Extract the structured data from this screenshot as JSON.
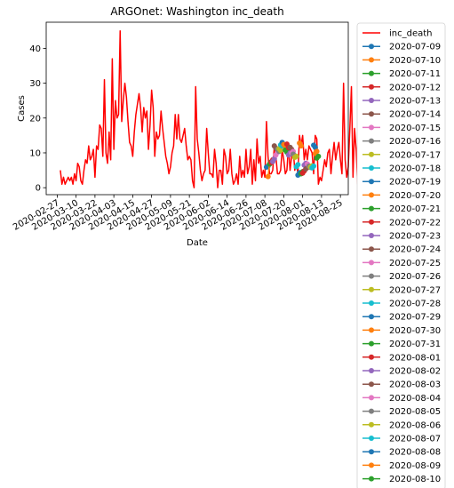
{
  "chart_data": {
    "type": "line",
    "title": "ARGOnet: Washington inc_death",
    "xlabel": "Date",
    "ylabel": "Cases",
    "xlim": [
      "2020-02-20",
      "2020-08-30"
    ],
    "ylim": [
      -2,
      47.5
    ],
    "grid": false,
    "legend_position": "outside-right",
    "x_ticks": [
      "2020-02-27",
      "2020-03-10",
      "2020-03-22",
      "2020-04-03",
      "2020-04-15",
      "2020-04-27",
      "2020-05-09",
      "2020-05-21",
      "2020-06-02",
      "2020-06-14",
      "2020-06-26",
      "2020-07-08",
      "2020-07-20",
      "2020-08-01",
      "2020-08-13",
      "2020-08-25"
    ],
    "y_ticks": [
      0,
      10,
      20,
      30,
      40
    ],
    "observed": {
      "name": "inc_death",
      "color": "#ff0000",
      "start_date": "2020-02-29",
      "values": [
        5,
        1,
        3,
        1,
        2,
        3,
        2,
        3,
        1,
        4,
        2,
        7,
        6,
        2,
        1,
        5,
        8,
        7,
        12,
        8,
        9,
        11,
        3,
        12,
        11,
        18,
        17,
        9,
        31,
        10,
        7,
        16,
        8,
        37,
        11,
        25,
        20,
        21,
        45,
        19,
        25,
        30,
        26,
        19,
        13,
        12,
        9,
        16,
        21,
        24,
        27,
        23,
        16,
        23,
        20,
        22,
        11,
        18,
        28,
        23,
        9,
        16,
        14,
        15,
        22,
        17,
        13,
        9,
        7,
        4,
        6,
        10,
        12,
        21,
        14,
        21,
        14,
        13,
        15,
        17,
        12,
        8,
        9,
        8,
        2,
        0,
        29,
        14,
        10,
        5,
        2,
        4,
        5,
        17,
        10,
        4,
        4,
        3,
        11,
        7,
        0,
        5,
        5,
        1,
        11,
        9,
        4,
        5,
        11,
        4,
        1,
        2,
        4,
        1,
        9,
        3,
        5,
        3,
        11,
        4,
        6,
        11,
        1,
        8,
        2,
        14,
        7,
        9,
        3,
        5,
        3,
        19,
        9,
        4,
        4,
        5,
        12,
        9,
        4,
        4,
        5,
        11,
        8,
        4,
        5,
        12,
        5,
        9,
        11,
        5,
        7,
        4,
        15,
        12,
        15,
        8,
        11,
        8,
        12,
        11,
        10,
        4,
        15,
        14,
        1,
        3,
        2,
        5,
        8,
        6,
        10,
        11,
        4,
        9,
        13,
        8,
        11,
        13,
        8,
        4,
        30,
        8,
        3,
        6,
        17,
        29,
        3,
        17,
        11,
        1,
        9,
        8,
        19,
        7,
        12,
        6,
        10,
        4,
        20,
        11,
        19,
        19,
        8,
        19,
        11,
        15,
        4
      ]
    },
    "forecasts": [
      {
        "name": "2020-07-09",
        "color": "#1f77b4",
        "x": [
          "2020-07-09",
          "2020-07-10"
        ],
        "y": [
          5.9,
          6.2
        ]
      },
      {
        "name": "2020-07-10",
        "color": "#ff7f0e",
        "x": [
          "2020-07-10",
          "2020-07-11"
        ],
        "y": [
          3.2,
          6.8
        ]
      },
      {
        "name": "2020-07-11",
        "color": "#2ca02c",
        "x": [
          "2020-07-11",
          "2020-07-12"
        ],
        "y": [
          6.8,
          7.4
        ]
      },
      {
        "name": "2020-07-12",
        "color": "#d62728",
        "x": [
          "2020-07-12",
          "2020-07-13"
        ],
        "y": [
          7.2,
          8.0
        ]
      },
      {
        "name": "2020-07-13",
        "color": "#9467bd",
        "x": [
          "2020-07-13",
          "2020-07-14"
        ],
        "y": [
          7.5,
          8.3
        ]
      },
      {
        "name": "2020-07-14",
        "color": "#8c564b",
        "x": [
          "2020-07-14",
          "2020-07-15"
        ],
        "y": [
          12.0,
          11.3
        ]
      },
      {
        "name": "2020-07-15",
        "color": "#e377c2",
        "x": [
          "2020-07-15",
          "2020-07-16"
        ],
        "y": [
          9.4,
          10.2
        ]
      },
      {
        "name": "2020-07-16",
        "color": "#7f7f7f",
        "x": [
          "2020-07-16",
          "2020-07-17"
        ],
        "y": [
          11.0,
          10.4
        ]
      },
      {
        "name": "2020-07-17",
        "color": "#bcbd22",
        "x": [
          "2020-07-17",
          "2020-07-18"
        ],
        "y": [
          11.2,
          10.7
        ]
      },
      {
        "name": "2020-07-18",
        "color": "#17becf",
        "x": [
          "2020-07-18",
          "2020-07-19"
        ],
        "y": [
          12.3,
          12.0
        ]
      },
      {
        "name": "2020-07-19",
        "color": "#1f77b4",
        "x": [
          "2020-07-19",
          "2020-07-20"
        ],
        "y": [
          13.0,
          12.4
        ]
      },
      {
        "name": "2020-07-20",
        "color": "#ff7f0e",
        "x": [
          "2020-07-20",
          "2020-07-21"
        ],
        "y": [
          12.4,
          11.8
        ]
      },
      {
        "name": "2020-07-21",
        "color": "#2ca02c",
        "x": [
          "2020-07-21",
          "2020-07-22"
        ],
        "y": [
          10.8,
          10.2
        ]
      },
      {
        "name": "2020-07-22",
        "color": "#d62728",
        "x": [
          "2020-07-22",
          "2020-07-23"
        ],
        "y": [
          12.5,
          11.5
        ]
      },
      {
        "name": "2020-07-23",
        "color": "#9467bd",
        "x": [
          "2020-07-23",
          "2020-07-24"
        ],
        "y": [
          9.4,
          10.0
        ]
      },
      {
        "name": "2020-07-24",
        "color": "#8c564b",
        "x": [
          "2020-07-24",
          "2020-07-25"
        ],
        "y": [
          11.6,
          11.0
        ]
      },
      {
        "name": "2020-07-25",
        "color": "#e377c2",
        "x": [
          "2020-07-25",
          "2020-07-26"
        ],
        "y": [
          10.0,
          10.4
        ]
      },
      {
        "name": "2020-07-26",
        "color": "#7f7f7f",
        "x": [
          "2020-07-26",
          "2020-07-27"
        ],
        "y": [
          9.6,
          9.2
        ]
      },
      {
        "name": "2020-07-27",
        "color": "#bcbd22",
        "x": [
          "2020-07-27",
          "2020-07-28"
        ],
        "y": [
          8.7,
          9.0
        ]
      },
      {
        "name": "2020-07-28",
        "color": "#17becf",
        "x": [
          "2020-07-28",
          "2020-07-29"
        ],
        "y": [
          6.0,
          6.6
        ]
      },
      {
        "name": "2020-07-29",
        "color": "#1f77b4",
        "x": [
          "2020-07-29",
          "2020-07-30"
        ],
        "y": [
          3.6,
          4.3
        ]
      },
      {
        "name": "2020-07-30",
        "color": "#ff7f0e",
        "x": [
          "2020-07-30",
          "2020-07-31"
        ],
        "y": [
          12.8,
          12.0
        ]
      },
      {
        "name": "2020-07-31",
        "color": "#2ca02c",
        "x": [
          "2020-07-31",
          "2020-08-01"
        ],
        "y": [
          4.0,
          4.6
        ]
      },
      {
        "name": "2020-08-01",
        "color": "#d62728",
        "x": [
          "2020-08-01",
          "2020-08-02"
        ],
        "y": [
          4.2,
          4.8
        ]
      },
      {
        "name": "2020-08-02",
        "color": "#9467bd",
        "x": [
          "2020-08-02",
          "2020-08-03"
        ],
        "y": [
          6.5,
          7.0
        ]
      },
      {
        "name": "2020-08-03",
        "color": "#8c564b",
        "x": [
          "2020-08-03",
          "2020-08-04"
        ],
        "y": [
          5.4,
          5.8
        ]
      },
      {
        "name": "2020-08-04",
        "color": "#e377c2",
        "x": [
          "2020-08-04",
          "2020-08-05"
        ],
        "y": [
          6.8,
          6.2
        ]
      },
      {
        "name": "2020-08-05",
        "color": "#7f7f7f",
        "x": [
          "2020-08-05",
          "2020-08-06"
        ],
        "y": [
          6.2,
          5.8
        ]
      },
      {
        "name": "2020-08-06",
        "color": "#bcbd22",
        "x": [
          "2020-08-06",
          "2020-08-07"
        ],
        "y": [
          5.9,
          6.3
        ]
      },
      {
        "name": "2020-08-07",
        "color": "#17becf",
        "x": [
          "2020-08-07",
          "2020-08-08"
        ],
        "y": [
          5.7,
          6.2
        ]
      },
      {
        "name": "2020-08-08",
        "color": "#1f77b4",
        "x": [
          "2020-08-08",
          "2020-08-09"
        ],
        "y": [
          12.2,
          11.6
        ]
      },
      {
        "name": "2020-08-09",
        "color": "#ff7f0e",
        "x": [
          "2020-08-09",
          "2020-08-10"
        ],
        "y": [
          9.8,
          10.4
        ]
      },
      {
        "name": "2020-08-10",
        "color": "#2ca02c",
        "x": [
          "2020-08-10",
          "2020-08-11"
        ],
        "y": [
          8.5,
          9.0
        ]
      }
    ]
  }
}
